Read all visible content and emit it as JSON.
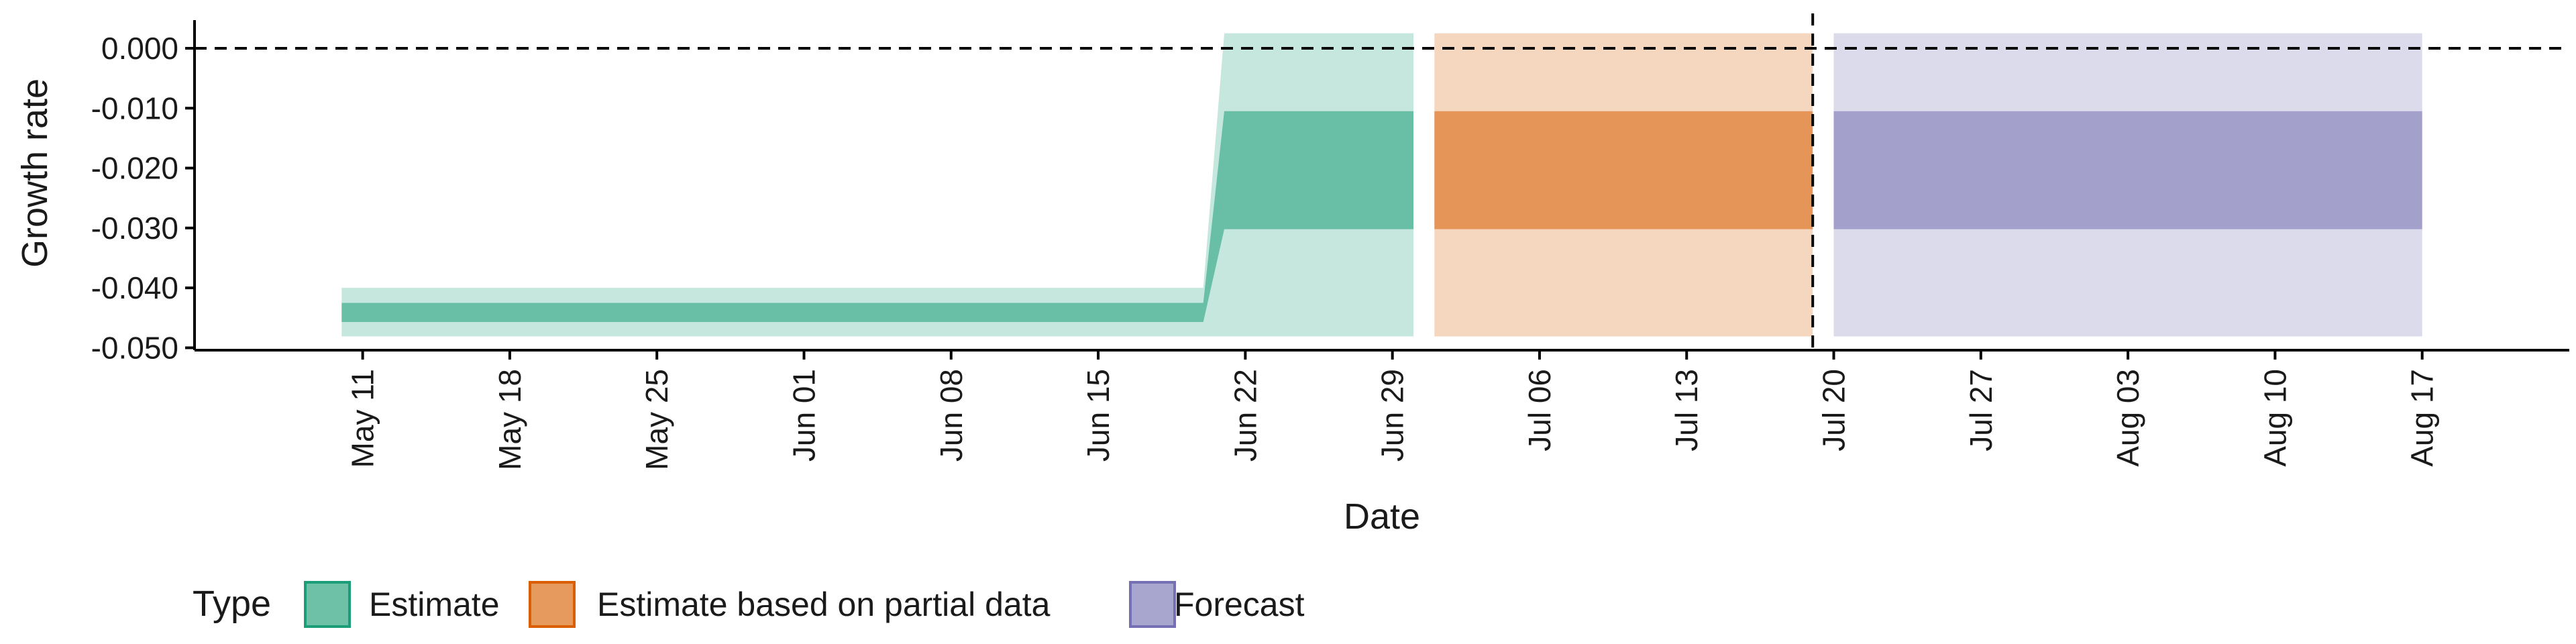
{
  "chart_data": {
    "type": "area",
    "title": "",
    "xlabel": "Date",
    "ylabel": "Growth rate",
    "x_axis": {
      "type": "date",
      "range": [
        "2020-05-03",
        "2020-08-24"
      ],
      "ticks": [
        {
          "date": "2020-05-11",
          "label": "May 11"
        },
        {
          "date": "2020-05-18",
          "label": "May 18"
        },
        {
          "date": "2020-05-25",
          "label": "May 25"
        },
        {
          "date": "2020-06-01",
          "label": "Jun 01"
        },
        {
          "date": "2020-06-08",
          "label": "Jun 08"
        },
        {
          "date": "2020-06-15",
          "label": "Jun 15"
        },
        {
          "date": "2020-06-22",
          "label": "Jun 22"
        },
        {
          "date": "2020-06-29",
          "label": "Jun 29"
        },
        {
          "date": "2020-07-06",
          "label": "Jul 06"
        },
        {
          "date": "2020-07-13",
          "label": "Jul 13"
        },
        {
          "date": "2020-07-20",
          "label": "Jul 20"
        },
        {
          "date": "2020-07-27",
          "label": "Jul 27"
        },
        {
          "date": "2020-08-03",
          "label": "Aug 03"
        },
        {
          "date": "2020-08-10",
          "label": "Aug 10"
        },
        {
          "date": "2020-08-17",
          "label": "Aug 17"
        }
      ]
    },
    "y_axis": {
      "range": [
        -0.0504,
        0.0047
      ],
      "ticks": [
        {
          "value": 0.0,
          "label": "0.000"
        },
        {
          "value": -0.01,
          "label": "-0.010"
        },
        {
          "value": -0.02,
          "label": "-0.020"
        },
        {
          "value": -0.03,
          "label": "-0.030"
        },
        {
          "value": -0.04,
          "label": "-0.040"
        },
        {
          "value": -0.05,
          "label": "-0.050"
        }
      ]
    },
    "grid": false,
    "reference_lines": [
      {
        "orientation": "horizontal",
        "value": 0.0,
        "style": "dashed"
      },
      {
        "orientation": "vertical",
        "date": "2020-07-19",
        "style": "dashed"
      }
    ],
    "series": [
      {
        "name": "Estimate",
        "color": "#1b9e77",
        "points": [
          {
            "date": "2020-05-10",
            "outer_low": -0.0481,
            "outer_high": -0.04,
            "inner_low": -0.0457,
            "inner_high": -0.0425
          },
          {
            "date": "2020-06-20",
            "outer_low": -0.0481,
            "outer_high": -0.04,
            "inner_low": -0.0457,
            "inner_high": -0.0425
          },
          {
            "date": "2020-06-21",
            "outer_low": -0.0481,
            "outer_high": 0.0025,
            "inner_low": -0.0302,
            "inner_high": -0.0105
          },
          {
            "date": "2020-06-30",
            "outer_low": -0.0481,
            "outer_high": 0.0025,
            "inner_low": -0.0302,
            "inner_high": -0.0105
          }
        ]
      },
      {
        "name": "Estimate based on partial data",
        "color": "#d95f02",
        "points": [
          {
            "date": "2020-07-01",
            "outer_low": -0.0481,
            "outer_high": 0.0025,
            "inner_low": -0.0302,
            "inner_high": -0.0105
          },
          {
            "date": "2020-07-19",
            "outer_low": -0.0481,
            "outer_high": 0.0025,
            "inner_low": -0.0302,
            "inner_high": -0.0105
          }
        ]
      },
      {
        "name": "Forecast",
        "color": "#7570b3",
        "points": [
          {
            "date": "2020-07-20",
            "outer_low": -0.0481,
            "outer_high": 0.0025,
            "inner_low": -0.0302,
            "inner_high": -0.0105
          },
          {
            "date": "2020-08-17",
            "outer_low": -0.0481,
            "outer_high": 0.0025,
            "inner_low": -0.0302,
            "inner_high": -0.0105
          }
        ]
      }
    ],
    "legend": {
      "position": "bottom",
      "title": "Type",
      "items": [
        {
          "label": "Estimate",
          "fill": "#6ec1a7",
          "stroke": "#1b9e77"
        },
        {
          "label": "Estimate based on partial data",
          "fill": "#e69a5e",
          "stroke": "#d95f02"
        },
        {
          "label": "Forecast",
          "fill": "#a8a5cf",
          "stroke": "#7570b3"
        }
      ]
    }
  }
}
